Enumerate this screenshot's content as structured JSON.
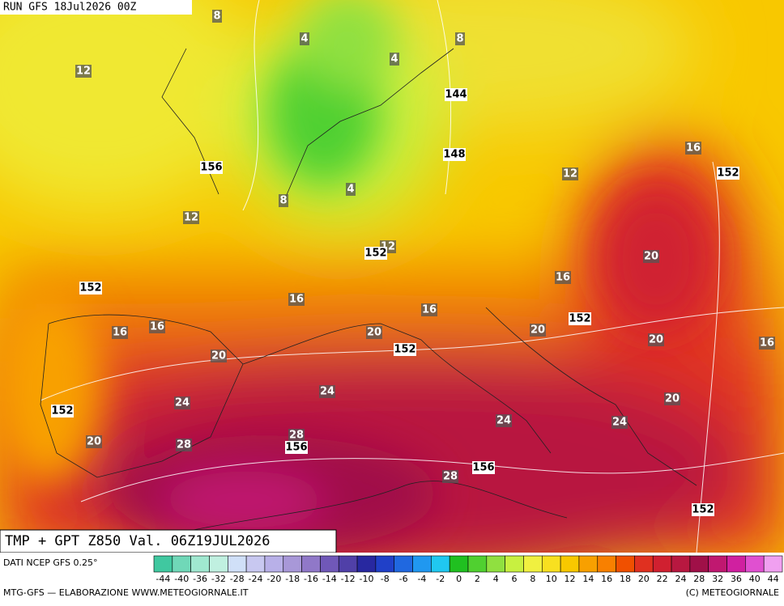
{
  "header": {
    "run": "RUN GFS 18Jul2026 00Z"
  },
  "map": {
    "temperature_labels": [
      12,
      8,
      4,
      4,
      8,
      8,
      4,
      12,
      12,
      12,
      16,
      20,
      16,
      16,
      16,
      16,
      16,
      20,
      20,
      20,
      16,
      20,
      24,
      24,
      20,
      24,
      24,
      20,
      28,
      28,
      28
    ],
    "geopotential_labels": [
      144,
      148,
      156,
      152,
      152,
      152,
      152,
      152,
      152,
      156,
      156,
      152
    ]
  },
  "footer": {
    "title": "TMP + GPT Z850 Val. 06Z19JUL2026",
    "source": "DATI NCEP GFS 0.25°",
    "credit_left": "MTG-GFS — ELABORAZIONE WWW.METEOGIORNALE.IT",
    "credit_right": "(C) METEOGIORNALE"
  },
  "colorbar": {
    "ticks": [
      -44,
      -40,
      -36,
      -32,
      -28,
      -24,
      -20,
      -18,
      -16,
      -14,
      -12,
      -10,
      -8,
      -6,
      -4,
      -2,
      0,
      2,
      4,
      6,
      8,
      10,
      12,
      14,
      16,
      18,
      20,
      22,
      24,
      28,
      32,
      36,
      40,
      44
    ],
    "colors": [
      "#40c8a0",
      "#70d8b8",
      "#a0e8d0",
      "#c0f0e0",
      "#d0e0f8",
      "#c8c8f0",
      "#b8b0e8",
      "#a898d8",
      "#9078c8",
      "#7058b8",
      "#5040a8",
      "#2828a0",
      "#2040c8",
      "#2068e0",
      "#2098f0",
      "#20c8f0",
      "#20c020",
      "#50d030",
      "#90e040",
      "#c8f040",
      "#f0f040",
      "#f8e020",
      "#f8c800",
      "#f8a000",
      "#f88000",
      "#f05000",
      "#e03020",
      "#d02030",
      "#b81840",
      "#a01048",
      "#c01870",
      "#d020a0",
      "#e050d0",
      "#f0a0f0"
    ]
  }
}
